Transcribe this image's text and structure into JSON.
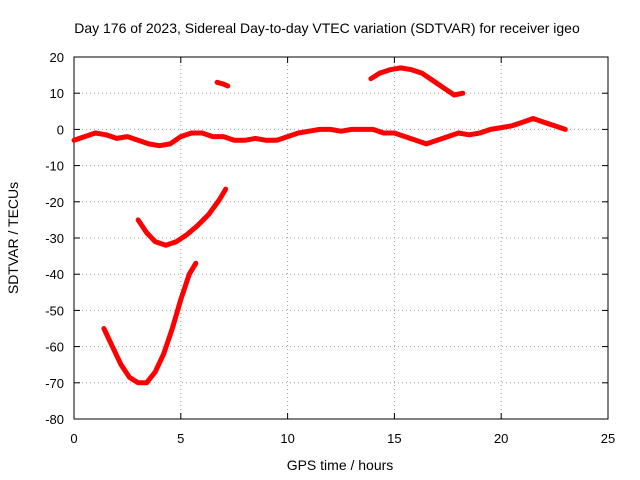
{
  "chart_data": {
    "type": "line",
    "title": "Day 176 of 2023, Sidereal Day-to-day VTEC variation (SDTVAR) for receiver igeo",
    "xlabel": "GPS time / hours",
    "ylabel": "SDTVAR / TECUs",
    "xlim": [
      0,
      25
    ],
    "ylim": [
      -80,
      20
    ],
    "x_ticks": [
      0,
      5,
      10,
      15,
      20,
      25
    ],
    "y_ticks": [
      -80,
      -70,
      -60,
      -50,
      -40,
      -30,
      -20,
      -10,
      0,
      10,
      20
    ],
    "grid": true,
    "color": "#ff0000",
    "series": [
      {
        "name": "baseline",
        "points": [
          [
            0,
            -3
          ],
          [
            0.5,
            -2
          ],
          [
            1,
            -1
          ],
          [
            1.5,
            -1.5
          ],
          [
            2,
            -2.5
          ],
          [
            2.5,
            -2
          ],
          [
            3,
            -3
          ],
          [
            3.5,
            -4
          ],
          [
            4,
            -4.5
          ],
          [
            4.5,
            -4
          ],
          [
            5,
            -2
          ],
          [
            5.5,
            -1
          ],
          [
            6,
            -1
          ],
          [
            6.5,
            -2
          ],
          [
            7,
            -2
          ],
          [
            7.5,
            -3
          ],
          [
            8,
            -3
          ],
          [
            8.5,
            -2.5
          ],
          [
            9,
            -3
          ],
          [
            9.5,
            -3
          ],
          [
            10,
            -2
          ],
          [
            10.5,
            -1
          ],
          [
            11,
            -0.5
          ],
          [
            11.5,
            0
          ],
          [
            12,
            0
          ],
          [
            12.5,
            -0.5
          ],
          [
            13,
            0
          ],
          [
            13.5,
            0
          ],
          [
            14,
            0
          ],
          [
            14.5,
            -1
          ],
          [
            15,
            -1
          ],
          [
            15.5,
            -2
          ],
          [
            16,
            -3
          ],
          [
            16.5,
            -4
          ],
          [
            17,
            -3
          ],
          [
            17.5,
            -2
          ],
          [
            18,
            -1
          ],
          [
            18.5,
            -1.5
          ],
          [
            19,
            -1
          ],
          [
            19.5,
            0
          ],
          [
            20,
            0.5
          ],
          [
            20.5,
            1
          ],
          [
            21,
            2
          ],
          [
            21.5,
            3
          ],
          [
            22,
            2
          ],
          [
            22.5,
            1
          ],
          [
            23,
            0
          ]
        ]
      },
      {
        "name": "arc-high",
        "points": [
          [
            13.9,
            14
          ],
          [
            14.3,
            15.5
          ],
          [
            14.8,
            16.5
          ],
          [
            15.3,
            17
          ],
          [
            15.8,
            16.5
          ],
          [
            16.3,
            15.5
          ],
          [
            16.8,
            13.5
          ],
          [
            17.3,
            11.5
          ],
          [
            17.8,
            9.5
          ],
          [
            18.2,
            10
          ]
        ]
      },
      {
        "name": "short-segment",
        "points": [
          [
            6.7,
            13
          ],
          [
            7.0,
            12.5
          ],
          [
            7.2,
            12
          ]
        ]
      },
      {
        "name": "arc-mid",
        "points": [
          [
            3.0,
            -25
          ],
          [
            3.4,
            -28.5
          ],
          [
            3.8,
            -31
          ],
          [
            4.3,
            -32
          ],
          [
            4.8,
            -31
          ],
          [
            5.3,
            -29
          ],
          [
            5.8,
            -26.5
          ],
          [
            6.3,
            -23.5
          ],
          [
            6.8,
            -19.5
          ],
          [
            7.1,
            -16.5
          ]
        ]
      },
      {
        "name": "arc-low",
        "points": [
          [
            1.4,
            -55
          ],
          [
            1.8,
            -60
          ],
          [
            2.2,
            -65
          ],
          [
            2.6,
            -68.5
          ],
          [
            3.0,
            -70
          ],
          [
            3.4,
            -70
          ],
          [
            3.8,
            -67
          ],
          [
            4.2,
            -62
          ],
          [
            4.6,
            -55
          ],
          [
            5.0,
            -47
          ],
          [
            5.4,
            -40
          ],
          [
            5.7,
            -37
          ]
        ]
      }
    ]
  }
}
